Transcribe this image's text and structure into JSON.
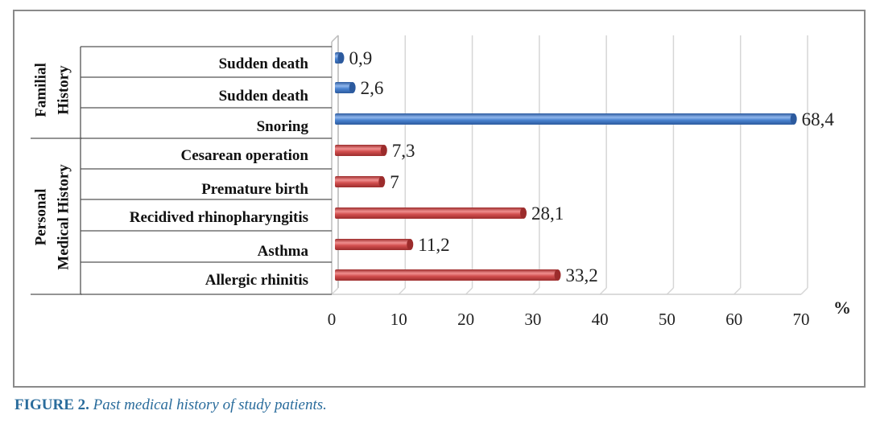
{
  "chart_data": {
    "type": "bar",
    "orientation": "horizontal",
    "unit": "%",
    "xlim": [
      0,
      70
    ],
    "x_ticks": [
      0,
      10,
      20,
      30,
      40,
      50,
      60,
      70
    ],
    "grid": true,
    "groups": [
      {
        "name": "Familial History",
        "color": "#3f78c6",
        "rows": [
          0,
          1,
          2
        ]
      },
      {
        "name": "Personal Medical History",
        "color": "#cf4a4a",
        "rows": [
          3,
          4,
          5,
          6,
          7
        ]
      }
    ],
    "categories": [
      "Sudden death",
      "Sudden death",
      "Snoring",
      "Cesarean operation",
      "Premature birth",
      "Recidived rhinopharyngitis",
      "Asthma",
      "Allergic rhinitis"
    ],
    "values": [
      0.9,
      2.6,
      68.4,
      7.3,
      7,
      28.1,
      11.2,
      33.2
    ],
    "value_labels": [
      "0,9",
      "2,6",
      "68,4",
      "7,3",
      "7",
      "28,1",
      "11,2",
      "33,2"
    ],
    "group_labels": [
      [
        "Familial",
        "History"
      ],
      [
        "Personal",
        "Medical History"
      ]
    ]
  },
  "caption": {
    "figure": "FIGURE 2.",
    "text": "Past medical history of study patients."
  }
}
